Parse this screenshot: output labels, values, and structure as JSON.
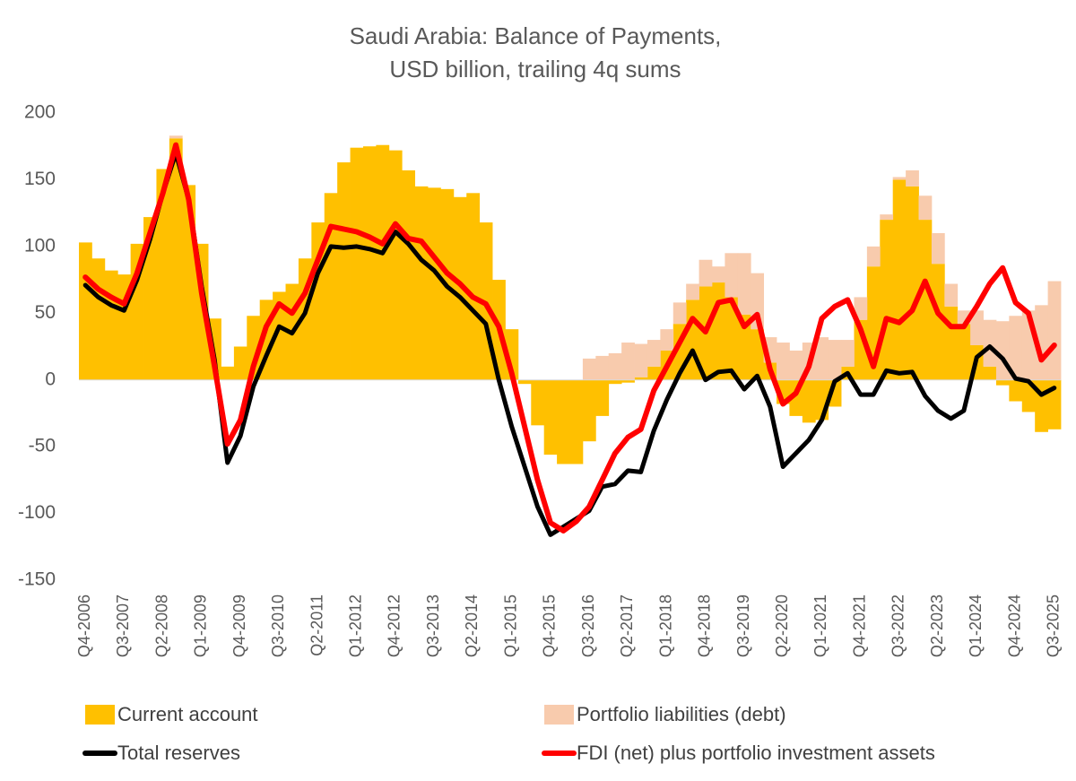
{
  "chart_data": {
    "type": "bar",
    "title": [
      "Saudi Arabia: Balance of Payments,",
      "USD billion, trailing 4q sums"
    ],
    "categories": [
      "Q4-2006",
      null,
      null,
      "Q3-2007",
      null,
      null,
      "Q2-2008",
      null,
      null,
      "Q1-2009",
      null,
      null,
      "Q4-2009",
      null,
      null,
      "Q3-2010",
      null,
      null,
      "Q2-2011",
      null,
      null,
      "Q1-2012",
      null,
      null,
      "Q4-2012",
      null,
      null,
      "Q3-2013",
      null,
      null,
      "Q2-2014",
      null,
      null,
      "Q1-2015",
      null,
      null,
      "Q4-2015",
      null,
      null,
      "Q3-2016",
      null,
      null,
      "Q2-2017",
      null,
      null,
      "Q1-2018",
      null,
      null,
      "Q4-2018",
      null,
      null,
      "Q3-2019",
      null,
      null,
      "Q2-2020",
      null,
      null,
      "Q1-2021",
      null,
      null,
      "Q4-2021",
      null,
      null,
      "Q3-2022",
      null,
      null,
      "Q2-2023",
      null,
      null,
      "Q1-2024",
      null,
      null,
      "Q4-2024",
      null,
      null,
      "Q3-2025"
    ],
    "ylim": [
      -150,
      200
    ],
    "yticks": [
      -150,
      -100,
      -50,
      0,
      50,
      100,
      150,
      200
    ],
    "series": [
      {
        "name": "Current account",
        "type": "bar",
        "color": "#ffc000",
        "values": [
          103,
          91,
          82,
          79,
          102,
          122,
          158,
          181,
          146,
          102,
          46,
          10,
          25,
          48,
          60,
          66,
          72,
          91,
          118,
          140,
          163,
          174,
          175,
          176,
          172,
          157,
          145,
          144,
          143,
          137,
          140,
          118,
          75,
          38,
          -3,
          -34,
          -56,
          -63,
          -63,
          -46,
          -27,
          -3,
          -2,
          2,
          10,
          22,
          42,
          60,
          70,
          73,
          62,
          49,
          38,
          13,
          -18,
          -27,
          -32,
          -30,
          -20,
          10,
          45,
          85,
          120,
          150,
          145,
          120,
          87,
          55,
          42,
          26,
          10,
          -4,
          -16,
          -24,
          -39,
          -37
        ]
      },
      {
        "name": "Portfolio liabilities (debt)",
        "type": "bar",
        "color": "#f8cbad",
        "values": [
          0,
          0,
          0,
          0,
          0,
          0,
          0,
          2,
          0,
          0,
          0,
          0,
          0,
          0,
          0,
          0,
          0,
          0,
          0,
          0,
          0,
          0,
          0,
          0,
          0,
          0,
          0,
          0,
          0,
          0,
          0,
          0,
          0,
          0,
          0,
          0,
          0,
          0,
          0,
          16,
          18,
          20,
          28,
          25,
          20,
          16,
          16,
          12,
          20,
          12,
          33,
          46,
          42,
          19,
          28,
          22,
          28,
          32,
          30,
          20,
          17,
          15,
          4,
          2,
          12,
          18,
          23,
          17,
          10,
          26,
          35,
          44,
          48,
          52,
          56,
          74
        ]
      },
      {
        "name": "Total reserves",
        "type": "line",
        "color": "#000000",
        "values": [
          71,
          62,
          56,
          52,
          75,
          105,
          140,
          170,
          135,
          70,
          15,
          -62,
          -42,
          -5,
          18,
          40,
          35,
          50,
          80,
          100,
          99,
          100,
          98,
          95,
          111,
          102,
          90,
          82,
          70,
          62,
          52,
          42,
          0,
          -35,
          -65,
          -95,
          -116,
          -110,
          -104,
          -98,
          -80,
          -78,
          -68,
          -69,
          -38,
          -15,
          5,
          22,
          0,
          6,
          7,
          -7,
          3,
          -20,
          -65,
          -55,
          -45,
          -30,
          -1,
          5,
          -11,
          -11,
          7,
          5,
          6,
          -12,
          -23,
          -29,
          -23,
          17,
          25,
          16,
          1,
          -1,
          -11,
          -6
        ]
      },
      {
        "name": "FDI (net) plus portfolio investment assets",
        "type": "line",
        "color": "#ff0000",
        "values": [
          77,
          68,
          62,
          57,
          80,
          110,
          140,
          176,
          135,
          65,
          10,
          -48,
          -30,
          10,
          40,
          57,
          50,
          65,
          90,
          115,
          113,
          111,
          107,
          102,
          117,
          106,
          104,
          92,
          80,
          72,
          62,
          57,
          40,
          5,
          -35,
          -75,
          -107,
          -113,
          -106,
          -95,
          -75,
          -55,
          -43,
          -37,
          -8,
          10,
          28,
          46,
          36,
          58,
          60,
          40,
          49,
          8,
          -18,
          -10,
          10,
          46,
          55,
          60,
          38,
          10,
          46,
          43,
          52,
          74,
          50,
          40,
          40,
          55,
          72,
          84,
          58,
          50,
          15,
          26
        ]
      }
    ]
  }
}
